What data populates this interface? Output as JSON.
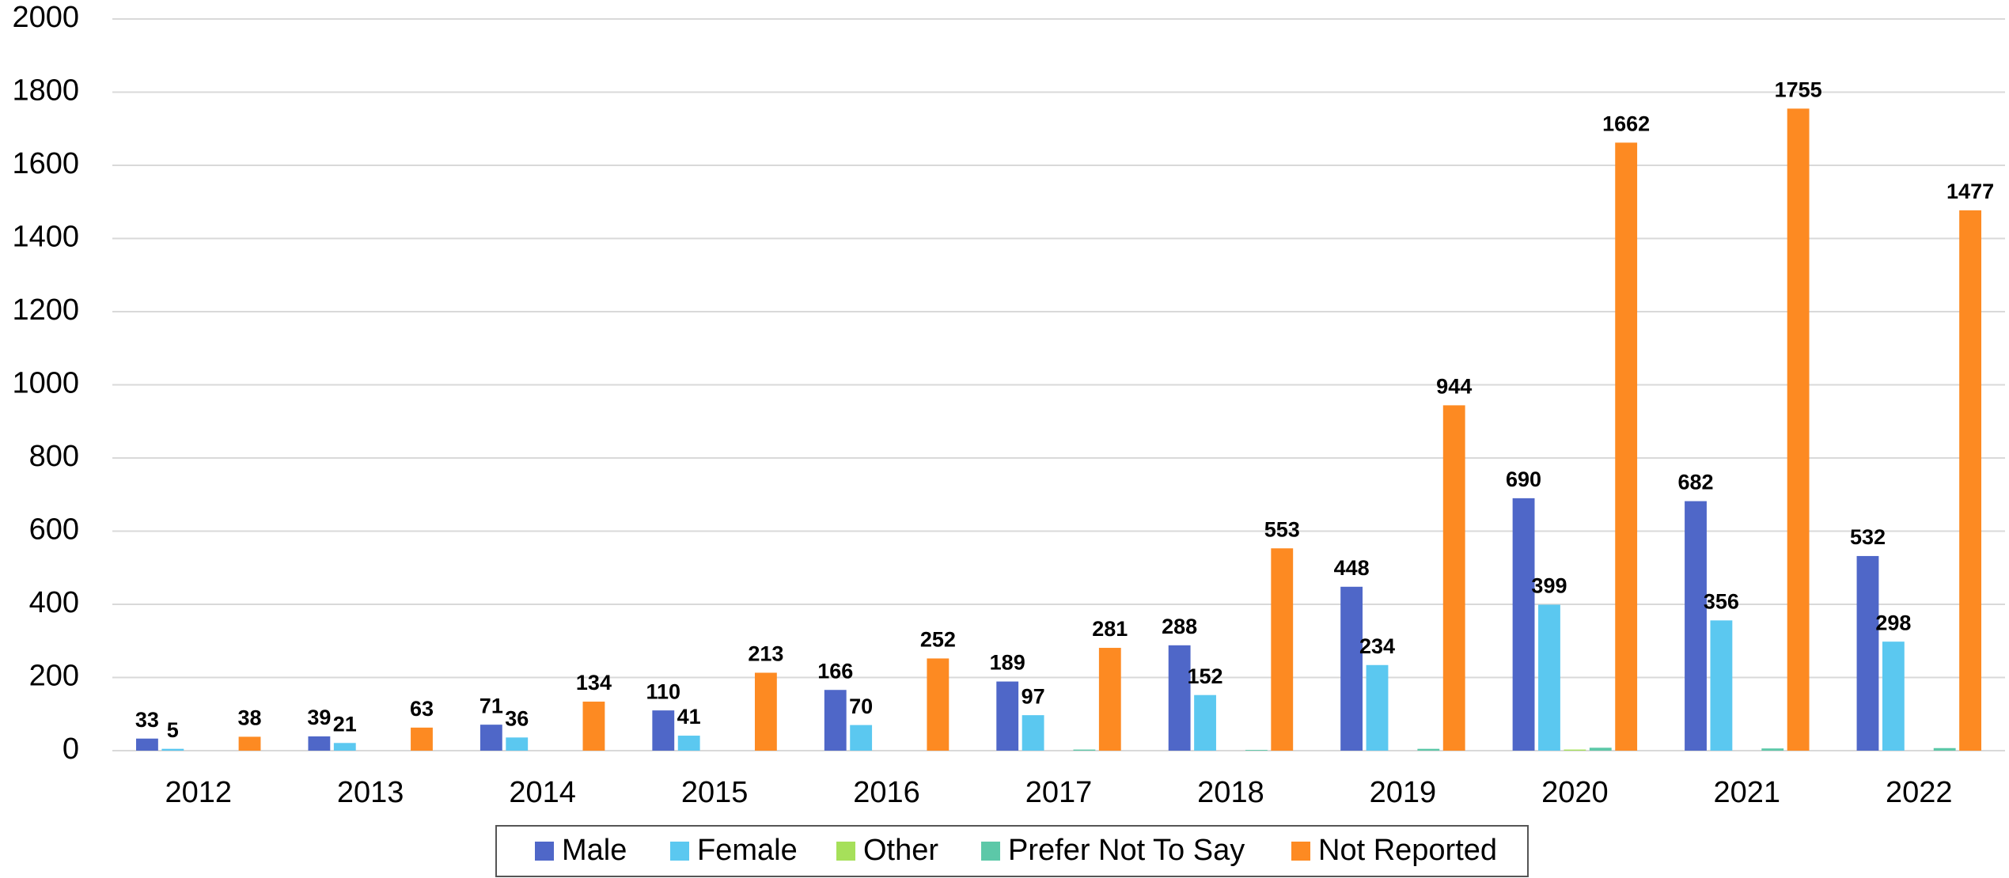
{
  "chart_data": {
    "type": "bar",
    "categories": [
      "2012",
      "2013",
      "2014",
      "2015",
      "2016",
      "2017",
      "2018",
      "2019",
      "2020",
      "2021",
      "2022"
    ],
    "series": [
      {
        "name": "Male",
        "color": "#4f67c8",
        "show_labels": true,
        "values": [
          33,
          39,
          71,
          110,
          166,
          189,
          288,
          448,
          690,
          682,
          532
        ]
      },
      {
        "name": "Female",
        "color": "#5bc8f0",
        "show_labels": true,
        "values": [
          5,
          21,
          36,
          41,
          70,
          97,
          152,
          234,
          399,
          356,
          298
        ]
      },
      {
        "name": "Other",
        "color": "#a6e05a",
        "show_labels": false,
        "values": [
          0,
          0,
          0,
          0,
          0,
          0,
          0,
          0,
          3,
          0,
          0
        ]
      },
      {
        "name": "Prefer Not To Say",
        "color": "#5cc8a8",
        "show_labels": false,
        "values": [
          0,
          0,
          0,
          0,
          0,
          3,
          2,
          5,
          8,
          6,
          7
        ]
      },
      {
        "name": "Not Reported",
        "color": "#fd8a22",
        "show_labels": true,
        "values": [
          38,
          63,
          134,
          213,
          252,
          281,
          553,
          944,
          1662,
          1755,
          1477
        ]
      }
    ],
    "ylim": [
      0,
      2000
    ],
    "yticks": [
      0,
      200,
      400,
      600,
      800,
      1000,
      1200,
      1400,
      1600,
      1800,
      2000
    ],
    "grid": true,
    "legend": "bottom"
  }
}
